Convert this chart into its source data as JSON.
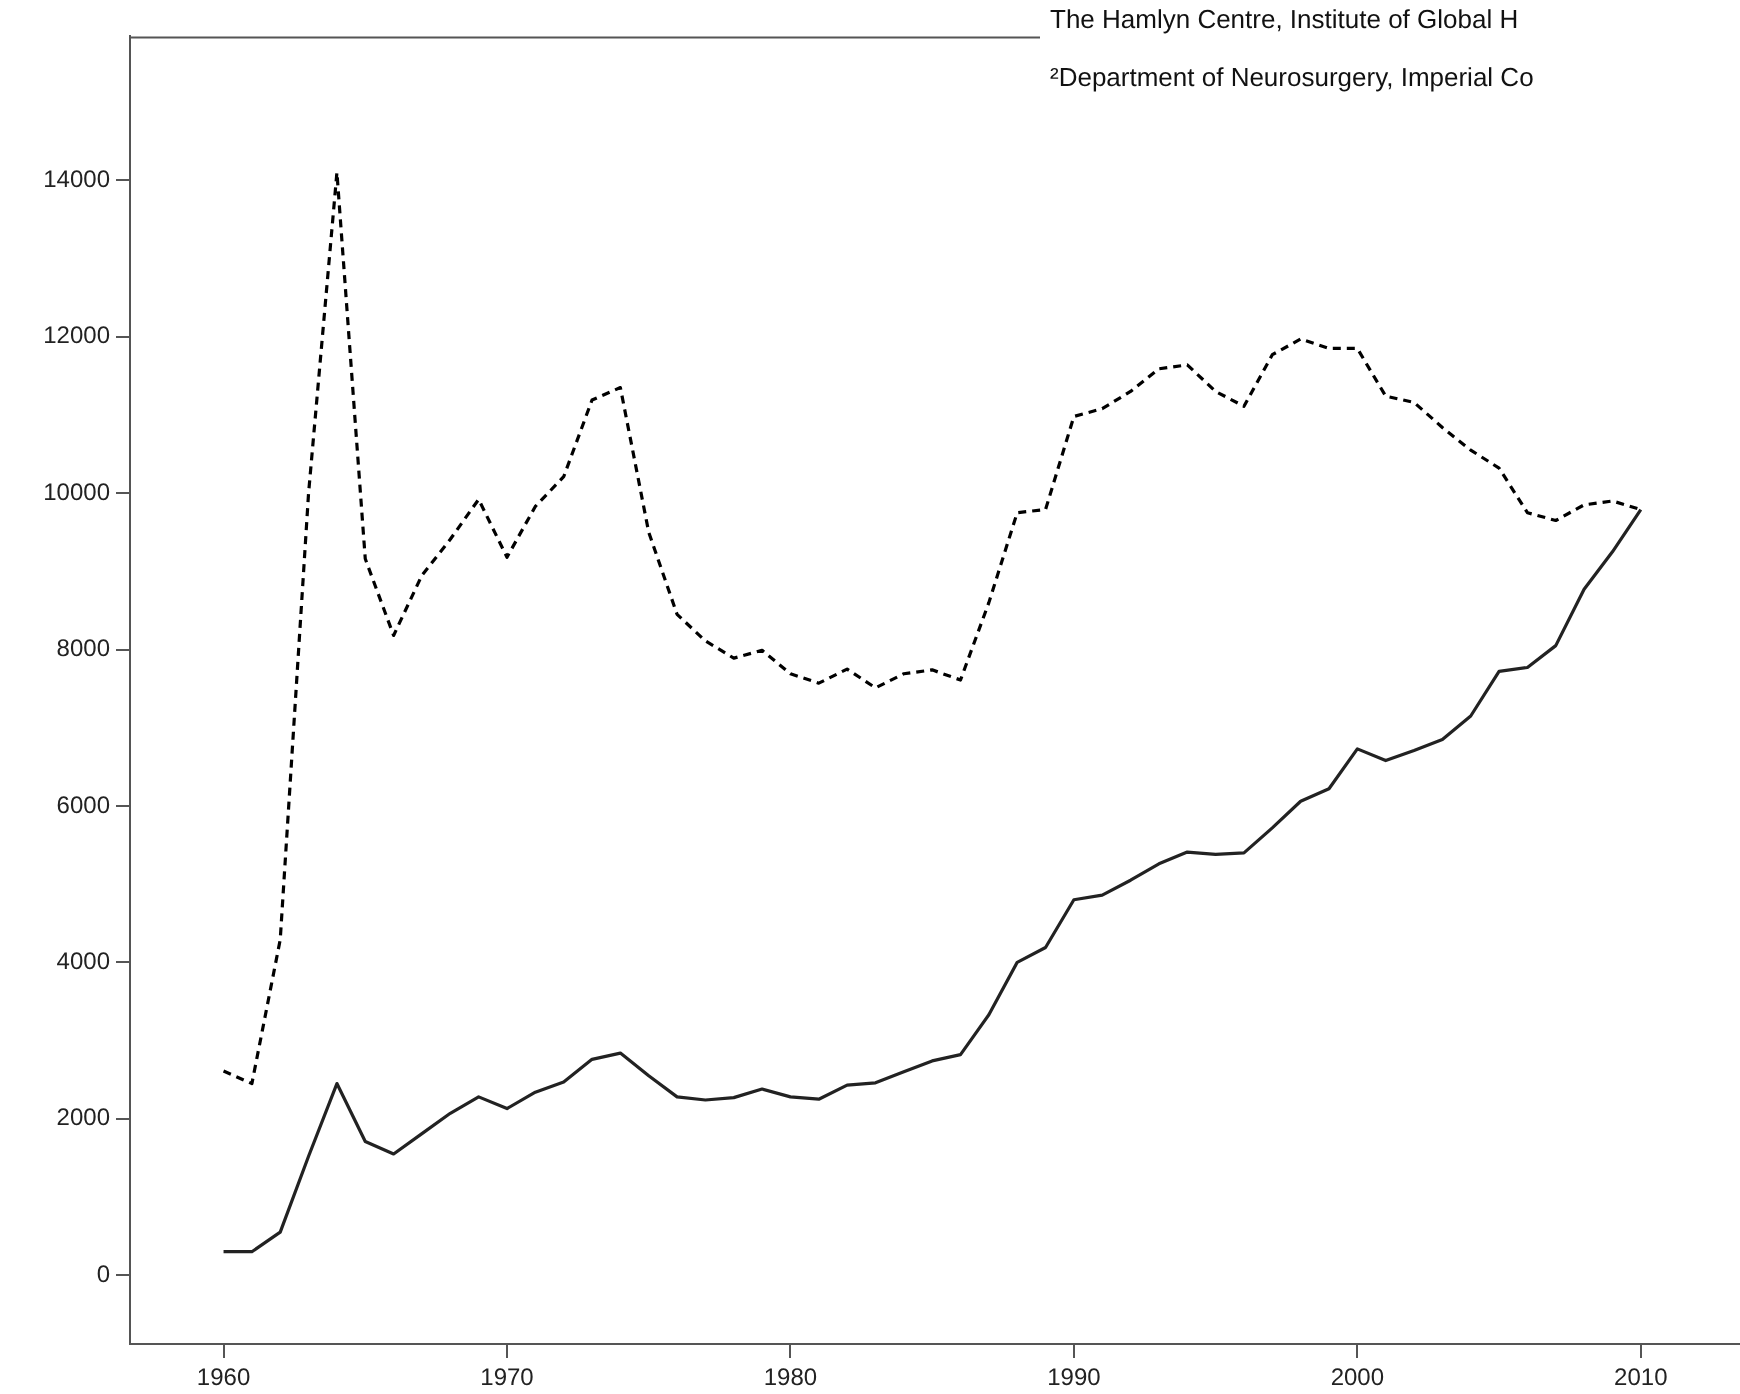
{
  "chart_data": {
    "type": "line",
    "x": [
      1960,
      1961,
      1962,
      1963,
      1964,
      1965,
      1966,
      1967,
      1968,
      1969,
      1970,
      1971,
      1972,
      1973,
      1974,
      1975,
      1976,
      1977,
      1978,
      1979,
      1980,
      1981,
      1982,
      1983,
      1984,
      1985,
      1986,
      1987,
      1988,
      1989,
      1990,
      1991,
      1992,
      1993,
      1994,
      1995,
      1996,
      1997,
      1998,
      1999,
      2000,
      2001,
      2002,
      2003,
      2004,
      2005,
      2006,
      2007,
      2008,
      2009,
      2010
    ],
    "series": [
      {
        "color": "#222222",
        "line_style": "solid",
        "values": [
          300,
          300,
          550,
          1520,
          2450,
          1710,
          1550,
          1810,
          2070,
          2280,
          2130,
          2340,
          2470,
          2760,
          2840,
          2550,
          2280,
          2240,
          2270,
          2380,
          2280,
          2250,
          2430,
          2460,
          2600,
          2740,
          2820,
          3330,
          4000,
          4190,
          4800,
          4860,
          5050,
          5260,
          5410,
          5380,
          5400,
          5720,
          6060,
          6220,
          6730,
          6580,
          6710,
          6850,
          7150,
          7720,
          7770,
          8050,
          8770,
          9250,
          9790
        ]
      },
      {
        "color": "#000000",
        "line_style": "dashed",
        "values": [
          2610,
          2450,
          4290,
          10000,
          14100,
          9160,
          8180,
          8950,
          9410,
          9920,
          9180,
          9830,
          10210,
          11190,
          11350,
          9500,
          8450,
          8110,
          7890,
          7990,
          7690,
          7570,
          7750,
          7510,
          7690,
          7740,
          7610,
          8600,
          9750,
          9790,
          10980,
          11080,
          11300,
          11590,
          11640,
          11300,
          11110,
          11770,
          11970,
          11850,
          11850,
          11240,
          11160,
          10840,
          10550,
          10320,
          9750,
          9650,
          9850,
          9900,
          9790
        ]
      }
    ],
    "xlim": [
      1956.7,
      2013.5
    ],
    "xticks": [
      1960,
      1970,
      1980,
      1990,
      2000,
      2010
    ],
    "ylim": [
      -880,
      15840
    ],
    "yticks": [
      0,
      2000,
      4000,
      6000,
      8000,
      10000,
      12000,
      14000
    ],
    "grid": false,
    "legend": false,
    "marker": "none",
    "annotations": [
      "The Hamlyn Centre, Institute of Global H",
      "²Department of Neurosurgery, Imperial Co"
    ]
  }
}
